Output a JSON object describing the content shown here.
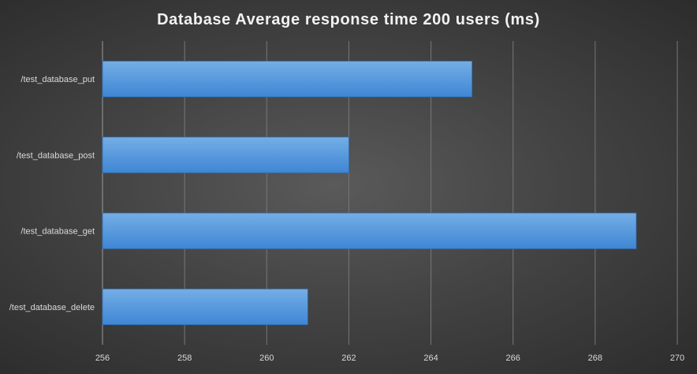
{
  "chart_data": {
    "type": "bar",
    "orientation": "horizontal",
    "title": "Database Average response time 200 users (ms)",
    "xlabel": "",
    "ylabel": "",
    "categories": [
      "/test_database_put",
      "/test_database_post",
      "/test_database_get",
      "/test_database_delete"
    ],
    "values": [
      265,
      262,
      269,
      261
    ],
    "xlim": [
      256,
      270
    ],
    "x_ticks": [
      256,
      258,
      260,
      262,
      264,
      266,
      268,
      270
    ],
    "x_tick_labels": [
      "256",
      "258",
      "260",
      "262",
      "264",
      "266",
      "268",
      "270"
    ],
    "grid": true,
    "legend": "none",
    "colors": {
      "bar_top": "#74aee6",
      "bar_bottom": "#3f86d4",
      "bar_edge": "#2f6fb7",
      "text": "#d9d9d9",
      "title": "#f2f2f2",
      "grid": "#777777",
      "axis": "#9a9a9a"
    }
  }
}
